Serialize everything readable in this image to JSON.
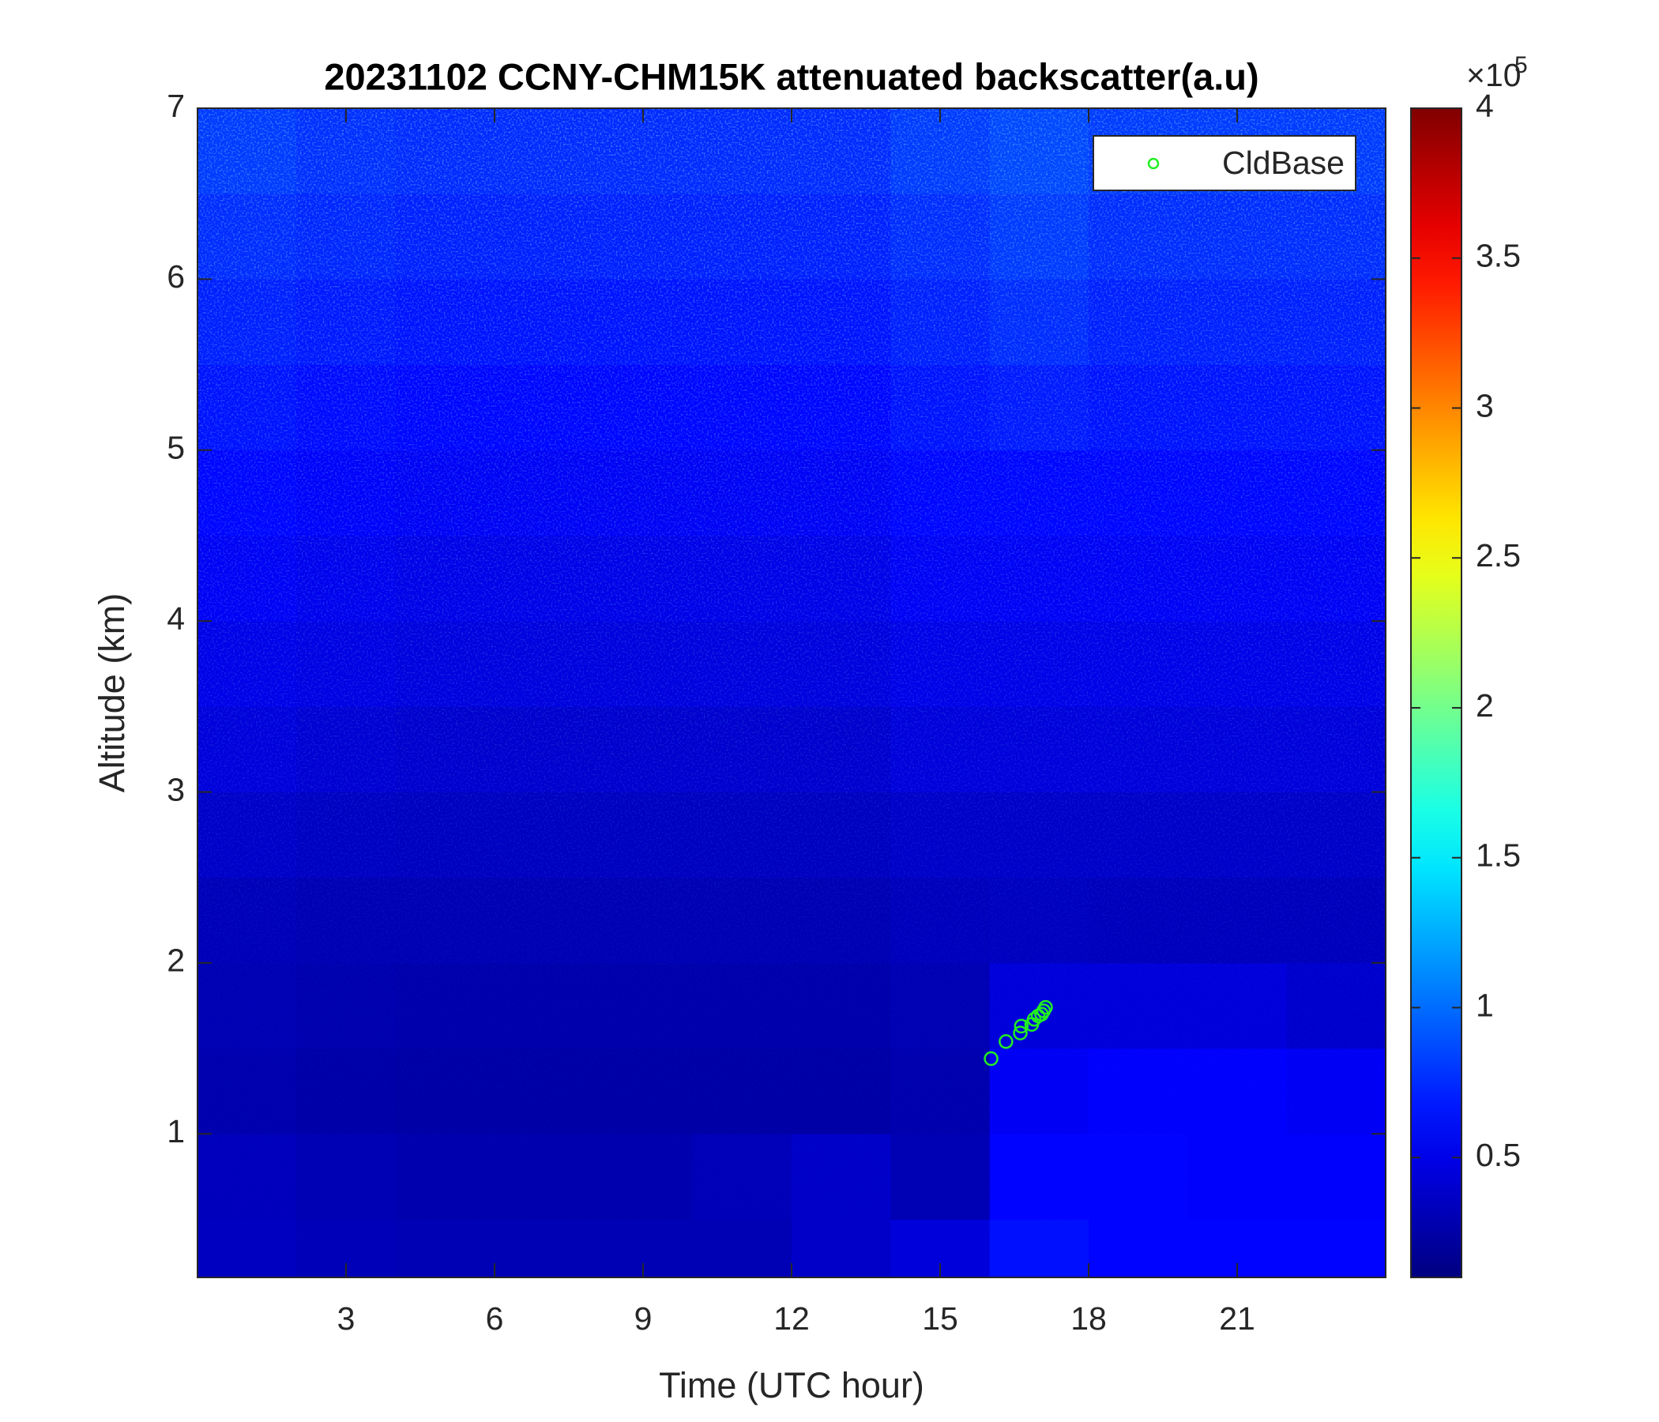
{
  "chart_data": {
    "type": "heatmap",
    "title": "20231102 CCNY-CHM15K attenuated backscatter(a.u)",
    "x_label": "Time (UTC hour)",
    "y_label": "Altitude (km)",
    "xlim": [
      0,
      24
    ],
    "ylim": [
      0.16,
      7
    ],
    "xticks": [
      3,
      6,
      9,
      12,
      15,
      18,
      21
    ],
    "yticks": [
      1,
      2,
      3,
      4,
      5,
      6,
      7
    ],
    "x_edges": [
      0,
      2,
      4,
      6,
      8,
      10,
      12,
      14,
      16,
      18,
      20,
      22,
      24
    ],
    "y_edges": [
      0.16,
      0.5,
      1,
      1.5,
      2,
      2.5,
      3,
      3.5,
      4,
      4.5,
      5,
      5.5,
      6,
      6.5,
      7
    ],
    "z": [
      [
        35000,
        32000,
        30000,
        30000,
        30000,
        30000,
        38000,
        45000,
        65000,
        60000,
        60000,
        60000
      ],
      [
        33000,
        30000,
        28000,
        28000,
        28000,
        32000,
        38000,
        30000,
        60000,
        60000,
        58000,
        58000
      ],
      [
        28000,
        26000,
        25000,
        25000,
        25000,
        25000,
        25000,
        28000,
        55000,
        58000,
        58000,
        55000
      ],
      [
        30000,
        28000,
        27000,
        27000,
        27000,
        27000,
        27000,
        30000,
        45000,
        45000,
        45000,
        40000
      ],
      [
        32000,
        30000,
        30000,
        30000,
        30000,
        30000,
        30000,
        33000,
        35000,
        33000,
        33000,
        33000
      ],
      [
        38000,
        36000,
        35000,
        35000,
        35000,
        35000,
        35000,
        38000,
        38000,
        38000,
        38000,
        38000
      ],
      [
        45000,
        42000,
        40000,
        40000,
        40000,
        40000,
        40000,
        45000,
        45000,
        45000,
        45000,
        45000
      ],
      [
        50000,
        48000,
        46000,
        46000,
        46000,
        46000,
        46000,
        50000,
        50000,
        50000,
        50000,
        50000
      ],
      [
        55000,
        52000,
        50000,
        50000,
        50000,
        50000,
        50000,
        55000,
        55000,
        55000,
        55000,
        55000
      ],
      [
        60000,
        57000,
        55000,
        55000,
        55000,
        55000,
        55000,
        60000,
        60000,
        60000,
        60000,
        60000
      ],
      [
        65000,
        62000,
        60000,
        60000,
        60000,
        60000,
        60000,
        65000,
        68000,
        65000,
        65000,
        65000
      ],
      [
        70000,
        67000,
        65000,
        65000,
        65000,
        65000,
        65000,
        70000,
        75000,
        70000,
        70000,
        70000
      ],
      [
        75000,
        72000,
        70000,
        70000,
        70000,
        70000,
        70000,
        75000,
        80000,
        75000,
        75000,
        75000
      ],
      [
        80000,
        76000,
        74000,
        74000,
        74000,
        74000,
        74000,
        80000,
        85000,
        80000,
        80000,
        80000
      ]
    ],
    "clim": [
      10000,
      400000
    ],
    "colormap": "jet",
    "colorbar_ticks": [
      {
        "value": 50000,
        "label": "0.5"
      },
      {
        "value": 100000,
        "label": "1"
      },
      {
        "value": 150000,
        "label": "1.5"
      },
      {
        "value": 200000,
        "label": "2"
      },
      {
        "value": 250000,
        "label": "2.5"
      },
      {
        "value": 300000,
        "label": "3"
      },
      {
        "value": 350000,
        "label": "3.5"
      },
      {
        "value": 400000,
        "label": "4"
      }
    ],
    "colorbar_multiplier": "×10",
    "colorbar_exponent": "5",
    "series": [
      {
        "name": "CldBase",
        "type": "scatter",
        "color": "#22ee22",
        "x": [
          16.03,
          16.33,
          16.62,
          16.64,
          16.85,
          16.9,
          16.98,
          17.05,
          17.09,
          17.13
        ],
        "values": [
          1.44,
          1.54,
          1.59,
          1.63,
          1.64,
          1.67,
          1.69,
          1.7,
          1.72,
          1.74
        ]
      }
    ],
    "legend": "upper right"
  }
}
